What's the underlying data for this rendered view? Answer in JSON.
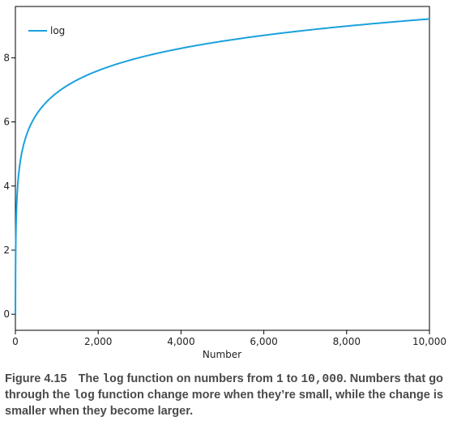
{
  "chart_data": {
    "type": "line",
    "title": "",
    "xlabel": "Number",
    "ylabel": "",
    "xlim": [
      0,
      10000
    ],
    "ylim": [
      -0.5,
      9.6
    ],
    "x_ticks": [
      0,
      2000,
      4000,
      6000,
      8000,
      10000
    ],
    "x_tick_labels": [
      "0",
      "2,000",
      "4,000",
      "6,000",
      "8,000",
      "10,000"
    ],
    "y_ticks": [
      0,
      2,
      4,
      6,
      8
    ],
    "y_tick_labels": [
      "0",
      "2",
      "4",
      "6",
      "8"
    ],
    "grid": false,
    "legend_position": "top-left",
    "series": [
      {
        "name": "log",
        "color": "#1ba1dc",
        "function": "natural log",
        "x": [
          1,
          2,
          5,
          10,
          20,
          50,
          100,
          200,
          500,
          1000,
          2000,
          3000,
          4000,
          5000,
          6000,
          7000,
          8000,
          9000,
          10000
        ],
        "y": [
          0,
          0.69,
          1.61,
          2.3,
          3.0,
          3.91,
          4.61,
          5.3,
          6.21,
          6.91,
          7.6,
          8.01,
          8.29,
          8.52,
          8.7,
          8.85,
          8.99,
          9.1,
          9.21
        ]
      }
    ]
  },
  "caption": {
    "number": "Figure 4.15",
    "part1": "The ",
    "code1": "log",
    "part2": " function on numbers from ",
    "code2": "1",
    "part3": " to ",
    "code3": "10,000",
    "part4": ". Numbers that go through the ",
    "code4": "log",
    "part5": " function change more when they’re small, while the change is smaller when they become larger."
  }
}
